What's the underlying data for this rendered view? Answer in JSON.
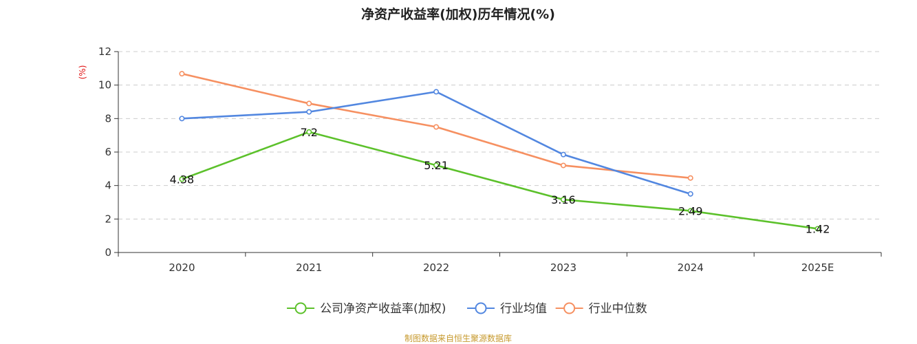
{
  "chart_data": {
    "type": "line",
    "title": "净资产收益率(加权)历年情况(%)",
    "ylabel": "(%)",
    "ylim": [
      0,
      12
    ],
    "yticks": [
      0,
      2,
      4,
      6,
      8,
      10,
      12
    ],
    "grid": true,
    "categories": [
      "2020",
      "2021",
      "2022",
      "2023",
      "2024",
      "2025E"
    ],
    "series": [
      {
        "name": "公司净资产收益率(加权)",
        "color": "#5cc12b",
        "values": [
          4.38,
          7.2,
          5.21,
          3.16,
          2.49,
          1.42
        ],
        "labels": [
          "4.38",
          "7.2",
          "5.21",
          "3.16",
          "2.49",
          "1.42"
        ]
      },
      {
        "name": "行业均值",
        "color": "#5287e0",
        "values": [
          8.0,
          8.4,
          9.6,
          5.85,
          3.5,
          null
        ]
      },
      {
        "name": "行业中位数",
        "color": "#f69061",
        "values": [
          10.68,
          8.9,
          7.5,
          5.2,
          4.45,
          null
        ]
      }
    ],
    "legend_position": "bottom"
  },
  "colors": {
    "ylabel": "#e01010",
    "source": "#c79a2e",
    "axis": "#333333",
    "grid": "#cccccc"
  },
  "source_text": "制图数据来自恒生聚源数据库"
}
